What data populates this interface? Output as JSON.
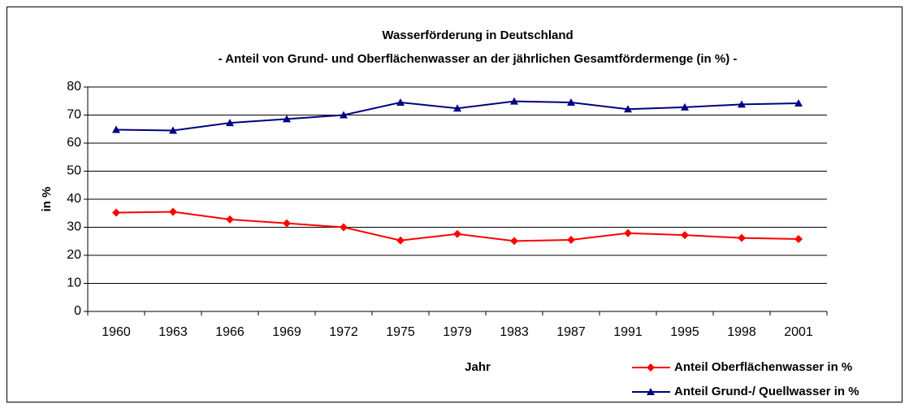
{
  "chart_data": {
    "type": "line",
    "title": "Wasserförderung in Deutschland",
    "subtitle": "- Anteil von Grund- und Oberflächenwasser an der jährlichen Gesamtfördermenge (in %) -",
    "x_label": "Jahr",
    "y_label": "in %",
    "categories": [
      "1960",
      "1963",
      "1966",
      "1969",
      "1972",
      "1975",
      "1979",
      "1983",
      "1987",
      "1991",
      "1995",
      "1998",
      "2001"
    ],
    "series": [
      {
        "name": "Anteil Oberflächenwasser in %",
        "color": "#ff0000",
        "marker": "diamond",
        "values": [
          35.2,
          35.5,
          32.8,
          31.4,
          30.0,
          25.3,
          27.6,
          25.1,
          25.5,
          27.9,
          27.2,
          26.2,
          25.8
        ]
      },
      {
        "name": "Anteil Grund-/ Quellwasser in %",
        "color": "#000080",
        "marker": "triangle",
        "values": [
          64.8,
          64.5,
          67.2,
          68.6,
          70.0,
          74.5,
          72.4,
          74.9,
          74.5,
          72.1,
          72.8,
          73.8,
          74.2
        ]
      }
    ],
    "ylim": [
      0,
      80
    ],
    "yticks": [
      0,
      10,
      20,
      30,
      40,
      50,
      60,
      70,
      80
    ],
    "grid": true,
    "legend": "lower right"
  }
}
